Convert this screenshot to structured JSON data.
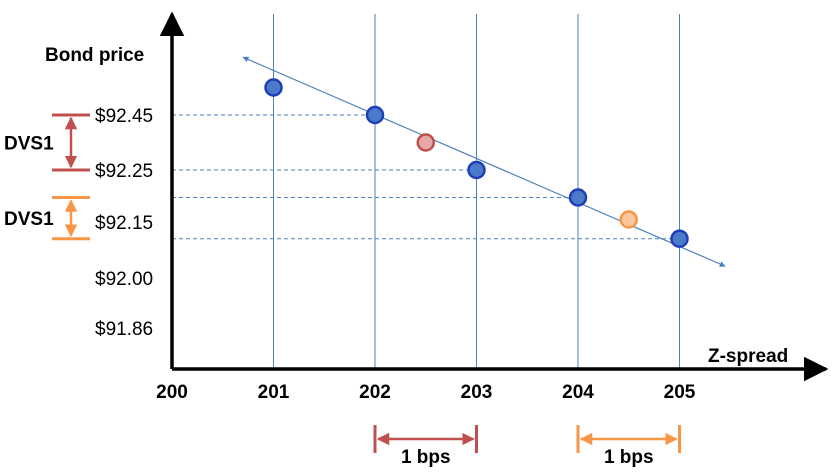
{
  "chart_data": {
    "type": "scatter",
    "xlabel": "Z-spread",
    "ylabel": "Bond price",
    "x_tick_labels": [
      "200",
      "201",
      "202",
      "203",
      "204",
      "205"
    ],
    "y_tick_labels": [
      "$92.45",
      "$92.25",
      "$92.15",
      "$92.00",
      "$91.86"
    ],
    "trend_line_extent": {
      "x": [
        200.7,
        205.45
      ],
      "y": [
        92.66,
        91.9
      ]
    },
    "points": [
      {
        "x": 201,
        "y": 92.55,
        "color": "#4472c4",
        "fill": "#4a7ac8"
      },
      {
        "x": 202,
        "y": 92.45,
        "color": "#4472c4",
        "fill": "#4a7ac8"
      },
      {
        "x": 202.5,
        "y": 92.35,
        "color": "#c0504d",
        "fill": "#e6a9a8"
      },
      {
        "x": 203,
        "y": 92.25,
        "color": "#4472c4",
        "fill": "#4a7ac8"
      },
      {
        "x": 204,
        "y": 92.15,
        "color": "#4472c4",
        "fill": "#4a7ac8"
      },
      {
        "x": 204.5,
        "y": 92.07,
        "color": "#f79646",
        "fill": "#fbc79f"
      },
      {
        "x": 205,
        "y": 92.0,
        "color": "#4472c4",
        "fill": "#4a7ac8"
      }
    ],
    "reference_lines": [
      {
        "y": 92.45,
        "x_end": 202
      },
      {
        "y": 92.25,
        "x_end": 203
      },
      {
        "y": 92.15,
        "x_end": 204
      },
      {
        "y": 92.0,
        "x_end": 205
      }
    ],
    "brackets_price": [
      {
        "label": "DVS1",
        "from": 92.45,
        "to": 92.25,
        "color": "#c0504d"
      },
      {
        "label": "DVS1",
        "from": 92.15,
        "to": 92.0,
        "color": "#f79646"
      }
    ],
    "brackets_spread": [
      {
        "label": "1 bps",
        "from": 202,
        "to": 203,
        "color": "#c0504d"
      },
      {
        "label": "1 bps",
        "from": 204,
        "to": 205,
        "color": "#f79646"
      }
    ],
    "colors": {
      "axis": "#000000",
      "gridline": "#4f81bd",
      "dashed": "#4f81bd",
      "trend": "#4f81bd"
    }
  }
}
